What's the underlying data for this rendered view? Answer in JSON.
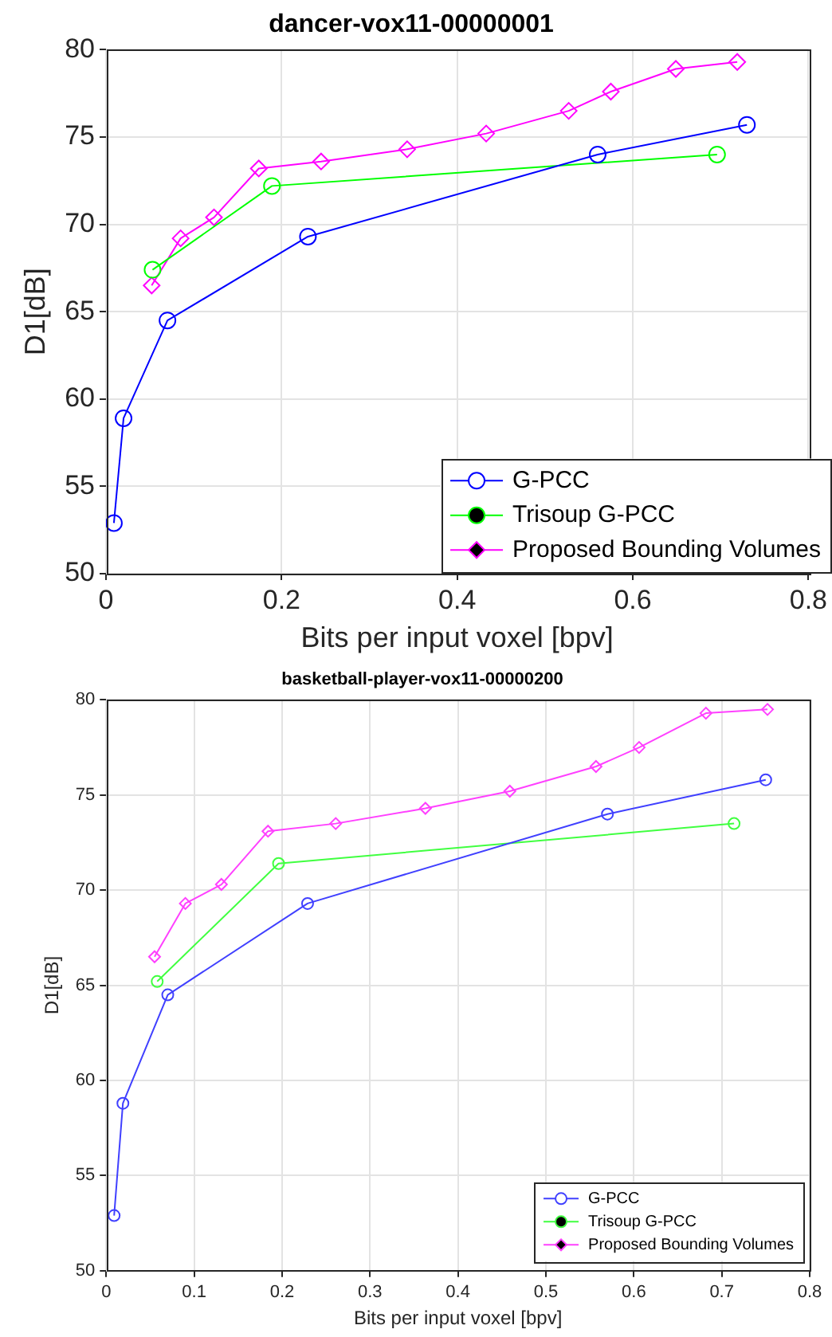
{
  "chart_data": [
    {
      "type": "line",
      "title": "dancer-vox11-00000001",
      "xlabel": "Bits per input voxel [bpv]",
      "ylabel": "D1[dB]",
      "xlim": [
        0,
        0.8
      ],
      "xticks": [
        0,
        0.2,
        0.4,
        0.6,
        0.8
      ],
      "ylim": [
        50,
        80
      ],
      "yticks": [
        50,
        55,
        60,
        65,
        70,
        75,
        80
      ],
      "grid": true,
      "legend": "bottom right",
      "series": [
        {
          "name": "G-PCC",
          "color": "#0000ff",
          "marker": "circle",
          "x": [
            0.009,
            0.02,
            0.07,
            0.23,
            0.56,
            0.73
          ],
          "values": [
            52.9,
            58.9,
            64.5,
            69.3,
            74.0,
            75.7
          ]
        },
        {
          "name": "Trisoup G-PCC",
          "color": "#00ff00",
          "marker": "circle",
          "x": [
            0.053,
            0.189,
            0.696
          ],
          "values": [
            67.4,
            72.2,
            74.0
          ]
        },
        {
          "name": "Proposed Bounding Volumes",
          "color": "#ff00ff",
          "marker": "diamond",
          "x": [
            0.052,
            0.085,
            0.123,
            0.174,
            0.245,
            0.343,
            0.433,
            0.527,
            0.575,
            0.649,
            0.719
          ],
          "values": [
            66.5,
            69.2,
            70.4,
            73.2,
            73.6,
            74.3,
            75.2,
            76.5,
            77.6,
            78.9,
            79.3
          ]
        }
      ]
    },
    {
      "type": "line",
      "title": "basketball-player-vox11-00000200",
      "xlabel": "Bits per input voxel [bpv]",
      "ylabel": "D1[dB]",
      "xlim": [
        0,
        0.8
      ],
      "xticks": [
        0,
        0.1,
        0.2,
        0.3,
        0.4,
        0.5,
        0.6,
        0.7,
        0.8
      ],
      "ylim": [
        50,
        80
      ],
      "yticks": [
        50,
        55,
        60,
        65,
        70,
        75,
        80
      ],
      "grid": true,
      "legend": "bottom right",
      "series": [
        {
          "name": "G-PCC",
          "color": "#4040ff",
          "marker": "circle",
          "x": [
            0.009,
            0.019,
            0.07,
            0.229,
            0.57,
            0.75
          ],
          "values": [
            52.9,
            58.8,
            64.5,
            69.3,
            74.0,
            75.8
          ]
        },
        {
          "name": "Trisoup G-PCC",
          "color": "#40ff40",
          "marker": "circle",
          "x": [
            0.058,
            0.196,
            0.714
          ],
          "values": [
            65.2,
            71.4,
            73.5
          ]
        },
        {
          "name": "Proposed Bounding Volumes",
          "color": "#ff40ff",
          "marker": "diamond",
          "x": [
            0.055,
            0.09,
            0.131,
            0.184,
            0.261,
            0.363,
            0.459,
            0.557,
            0.606,
            0.682,
            0.752
          ],
          "values": [
            66.5,
            69.3,
            70.3,
            73.1,
            73.5,
            74.3,
            75.2,
            76.5,
            77.5,
            79.3,
            79.5
          ]
        }
      ]
    }
  ]
}
